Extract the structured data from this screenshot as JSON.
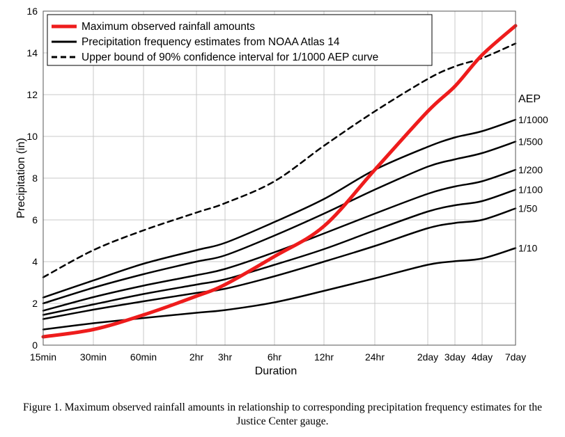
{
  "chart_data": {
    "type": "line",
    "xlabel": "Duration",
    "ylabel": "Precipitation (in)",
    "x": [
      "15min",
      "30min",
      "60min",
      "2hr",
      "3hr",
      "6hr",
      "12hr",
      "24hr",
      "2day",
      "3day",
      "4day",
      "7day"
    ],
    "ylim": [
      0,
      16
    ],
    "yticks": [
      "0",
      "2",
      "4",
      "6",
      "8",
      "10",
      "12",
      "14",
      "16"
    ],
    "grid": true,
    "legend_position": "top-left",
    "legend": [
      {
        "label": "Maximum observed rainfall amounts",
        "color": "#ee1c1c",
        "style": "solid-thick"
      },
      {
        "label": "Precipitation frequency estimates from NOAA Atlas 14",
        "color": "#000000",
        "style": "solid"
      },
      {
        "label": "Upper bound of 90% confidence interval for 1/1000 AEP curve",
        "color": "#000000",
        "style": "dashed"
      }
    ],
    "aep_title": "AEP",
    "series": [
      {
        "name": "Maximum observed rainfall amounts",
        "kind": "observed",
        "values": [
          0.4,
          0.75,
          1.45,
          2.35,
          2.9,
          4.25,
          5.7,
          8.4,
          11.2,
          12.4,
          13.9,
          15.3
        ]
      },
      {
        "name": "1/1000",
        "kind": "aep",
        "values": [
          2.28,
          3.1,
          3.9,
          4.55,
          4.9,
          5.9,
          7.0,
          8.4,
          9.5,
          9.95,
          10.25,
          10.8
        ]
      },
      {
        "name": "1/500",
        "kind": "aep",
        "values": [
          2.0,
          2.75,
          3.4,
          4.0,
          4.3,
          5.25,
          6.3,
          7.45,
          8.55,
          8.9,
          9.2,
          9.75
        ]
      },
      {
        "name": "1/200",
        "kind": "aep",
        "values": [
          1.65,
          2.3,
          2.85,
          3.35,
          3.65,
          4.45,
          5.35,
          6.3,
          7.25,
          7.6,
          7.85,
          8.4
        ]
      },
      {
        "name": "1/100",
        "kind": "aep",
        "values": [
          1.45,
          1.95,
          2.45,
          2.9,
          3.15,
          3.85,
          4.6,
          5.5,
          6.4,
          6.7,
          6.9,
          7.45
        ]
      },
      {
        "name": "1/50",
        "kind": "aep",
        "values": [
          1.25,
          1.7,
          2.1,
          2.5,
          2.7,
          3.3,
          4.0,
          4.75,
          5.6,
          5.85,
          6.0,
          6.55
        ]
      },
      {
        "name": "1/10",
        "kind": "aep",
        "values": [
          0.75,
          1.05,
          1.3,
          1.55,
          1.68,
          2.05,
          2.6,
          3.2,
          3.85,
          4.02,
          4.15,
          4.65
        ]
      },
      {
        "name": "Upper bound of 90% confidence interval for 1/1000 AEP curve",
        "kind": "upper",
        "values": [
          3.25,
          4.55,
          5.5,
          6.35,
          6.8,
          7.85,
          9.55,
          11.2,
          12.75,
          13.35,
          13.75,
          14.45
        ]
      }
    ]
  },
  "caption": "Figure 1. Maximum observed rainfall amounts in relationship to corresponding precipitation frequency estimates for the Justice Center gauge."
}
